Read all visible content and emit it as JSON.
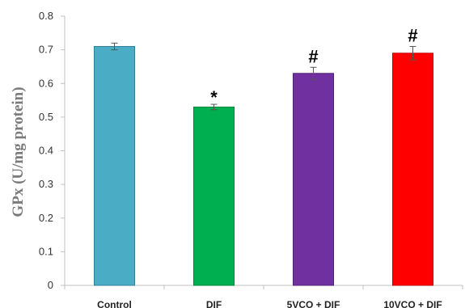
{
  "chart_data": {
    "type": "bar",
    "title": "",
    "xlabel": "",
    "ylabel": "GPx (U/mg protein)",
    "ylim": [
      0,
      0.8
    ],
    "yticks": [
      0,
      0.1,
      0.2,
      0.3,
      0.4,
      0.5,
      0.6,
      0.7,
      0.8
    ],
    "ytick_labels": [
      "0",
      "0.1",
      "0.2",
      "0.3",
      "0.4",
      "0.5",
      "0.6",
      "0.7",
      "0.8"
    ],
    "grid": false,
    "legend": "none",
    "categories": [
      "Control",
      "DIF",
      "5VCO + DIF",
      "10VCO + DIF"
    ],
    "values": [
      0.71,
      0.53,
      0.63,
      0.69
    ],
    "errors": [
      0.01,
      0.008,
      0.018,
      0.02
    ],
    "annotations": [
      "",
      "*",
      "#",
      "#"
    ],
    "colors": [
      "#4bacc6",
      "#00b050",
      "#7030a0",
      "#ff0000"
    ],
    "edge_colors": [
      "#2f7f99",
      "#00833b",
      "#4f1f73",
      "#c00000"
    ]
  }
}
